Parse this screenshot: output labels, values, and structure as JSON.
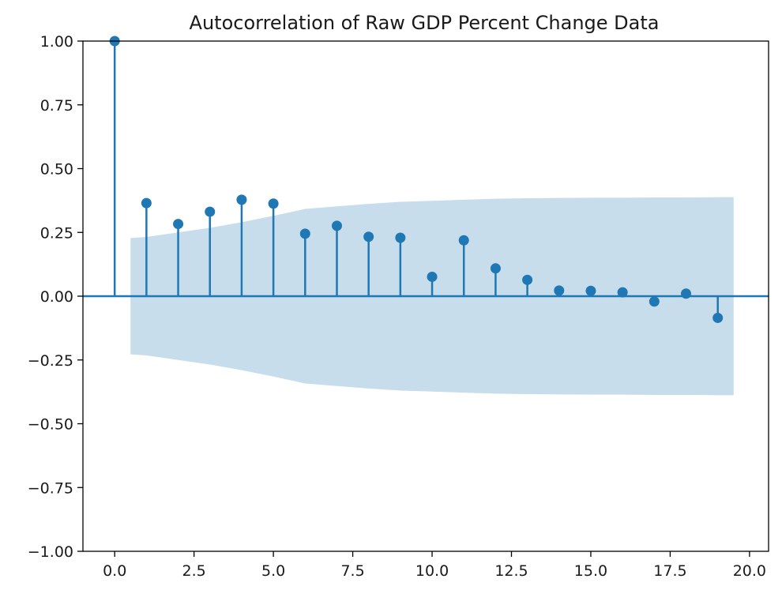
{
  "chart_data": {
    "type": "scatter",
    "title": "Autocorrelation of Raw GDP Percent Change Data",
    "xlabel": "",
    "ylabel": "",
    "xlim": [
      -1.0,
      20.6
    ],
    "ylim": [
      -1.0,
      1.0
    ],
    "x_ticks": [
      0.0,
      2.5,
      5.0,
      7.5,
      10.0,
      12.5,
      15.0,
      17.5,
      20.0
    ],
    "x_tick_labels": [
      "0.0",
      "2.5",
      "5.0",
      "7.5",
      "10.0",
      "12.5",
      "15.0",
      "17.5",
      "20.0"
    ],
    "y_ticks": [
      1.0,
      0.75,
      0.5,
      0.25,
      0.0,
      -0.25,
      -0.5,
      -0.75,
      -1.0
    ],
    "y_tick_labels": [
      "1.00",
      "0.75",
      "0.50",
      "0.25",
      "0.00",
      "−0.25",
      "−0.50",
      "−0.75",
      "−1.00"
    ],
    "grid": false,
    "colors": {
      "stem": "#1f77b4",
      "confidence_band": "#1f77b4",
      "baseline": "#1f77b4"
    },
    "lags": [
      0,
      1,
      2,
      3,
      4,
      5,
      6,
      7,
      8,
      9,
      10,
      11,
      12,
      13,
      14,
      15,
      16,
      17,
      18,
      19
    ],
    "acf": [
      1.0,
      0.365,
      0.283,
      0.331,
      0.378,
      0.363,
      0.245,
      0.276,
      0.233,
      0.229,
      0.076,
      0.219,
      0.109,
      0.064,
      0.022,
      0.021,
      0.015,
      -0.021,
      0.01,
      -0.085
    ],
    "confidence_band": {
      "x": [
        0.5,
        1,
        2,
        3,
        4,
        5,
        6,
        7,
        8,
        9,
        10,
        11,
        12,
        13,
        14,
        15,
        16,
        17,
        18,
        19,
        19.5
      ],
      "upper": [
        0.228,
        0.232,
        0.25,
        0.268,
        0.29,
        0.315,
        0.342,
        0.352,
        0.362,
        0.37,
        0.374,
        0.378,
        0.382,
        0.384,
        0.385,
        0.386,
        0.386,
        0.387,
        0.387,
        0.388,
        0.388
      ],
      "lower": [
        -0.228,
        -0.232,
        -0.25,
        -0.268,
        -0.29,
        -0.315,
        -0.342,
        -0.352,
        -0.362,
        -0.37,
        -0.374,
        -0.378,
        -0.382,
        -0.384,
        -0.385,
        -0.386,
        -0.386,
        -0.387,
        -0.387,
        -0.388,
        -0.388
      ]
    }
  }
}
